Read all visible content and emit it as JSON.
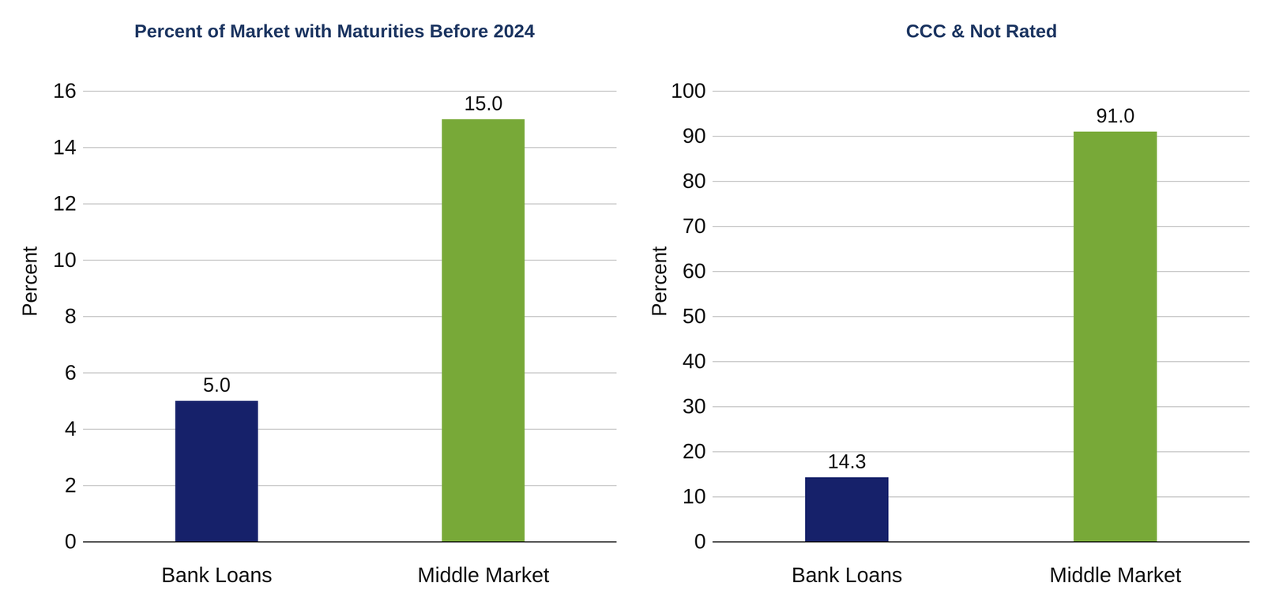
{
  "chart_data": [
    {
      "type": "bar",
      "title": "Percent of Market with Maturities Before 2024",
      "categories": [
        "Bank Loans",
        "Middle Market"
      ],
      "values": [
        5.0,
        15.0
      ],
      "value_labels": [
        "5.0",
        "15.0"
      ],
      "colors": [
        "#16216a",
        "#78a938"
      ],
      "y_label": "Percent",
      "ylim": [
        0,
        16
      ],
      "yticks": [
        0,
        2,
        4,
        6,
        8,
        10,
        12,
        14,
        16
      ],
      "grid": true,
      "data_labels": true
    },
    {
      "type": "bar",
      "title": "CCC & Not Rated",
      "categories": [
        "Bank Loans",
        "Middle Market"
      ],
      "values": [
        14.3,
        91.0
      ],
      "value_labels": [
        "14.3",
        "91.0"
      ],
      "colors": [
        "#16216a",
        "#78a938"
      ],
      "y_label": "Percent",
      "ylim": [
        0,
        100
      ],
      "yticks": [
        0,
        10,
        20,
        30,
        40,
        50,
        60,
        70,
        80,
        90,
        100
      ],
      "grid": true,
      "data_labels": true
    }
  ]
}
